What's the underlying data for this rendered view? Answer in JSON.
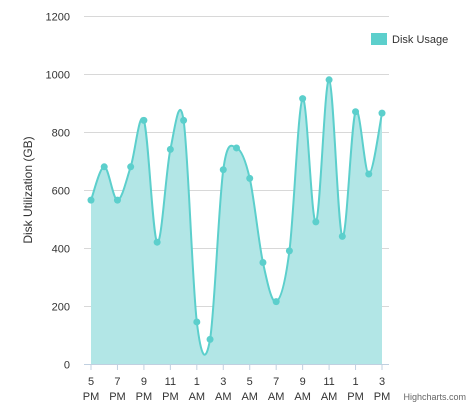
{
  "chart_data": {
    "type": "area",
    "title": "",
    "ylabel": "Disk Utilization (GB)",
    "xlabel": "",
    "ylim": [
      0,
      1200
    ],
    "yticks": [
      0,
      200,
      400,
      600,
      800,
      1000,
      1200
    ],
    "x_tick_labels": [
      {
        "hour": "5",
        "ampm": "PM"
      },
      {
        "hour": "7",
        "ampm": "PM"
      },
      {
        "hour": "9",
        "ampm": "PM"
      },
      {
        "hour": "11",
        "ampm": "PM"
      },
      {
        "hour": "1",
        "ampm": "AM"
      },
      {
        "hour": "3",
        "ampm": "AM"
      },
      {
        "hour": "5",
        "ampm": "AM"
      },
      {
        "hour": "7",
        "ampm": "AM"
      },
      {
        "hour": "9",
        "ampm": "AM"
      },
      {
        "hour": "11",
        "ampm": "AM"
      },
      {
        "hour": "1",
        "ampm": "PM"
      },
      {
        "hour": "3",
        "ampm": "PM"
      }
    ],
    "grid": true,
    "legend_position": "top-right",
    "series": [
      {
        "name": "Disk Usage",
        "color": "#5ccfcc",
        "fill": "#b2e6e6",
        "values": [
          565,
          680,
          565,
          680,
          840,
          420,
          740,
          840,
          145,
          85,
          670,
          745,
          640,
          350,
          215,
          390,
          915,
          490,
          980,
          440,
          870,
          655,
          865
        ]
      }
    ]
  },
  "credits": "Highcharts.com"
}
